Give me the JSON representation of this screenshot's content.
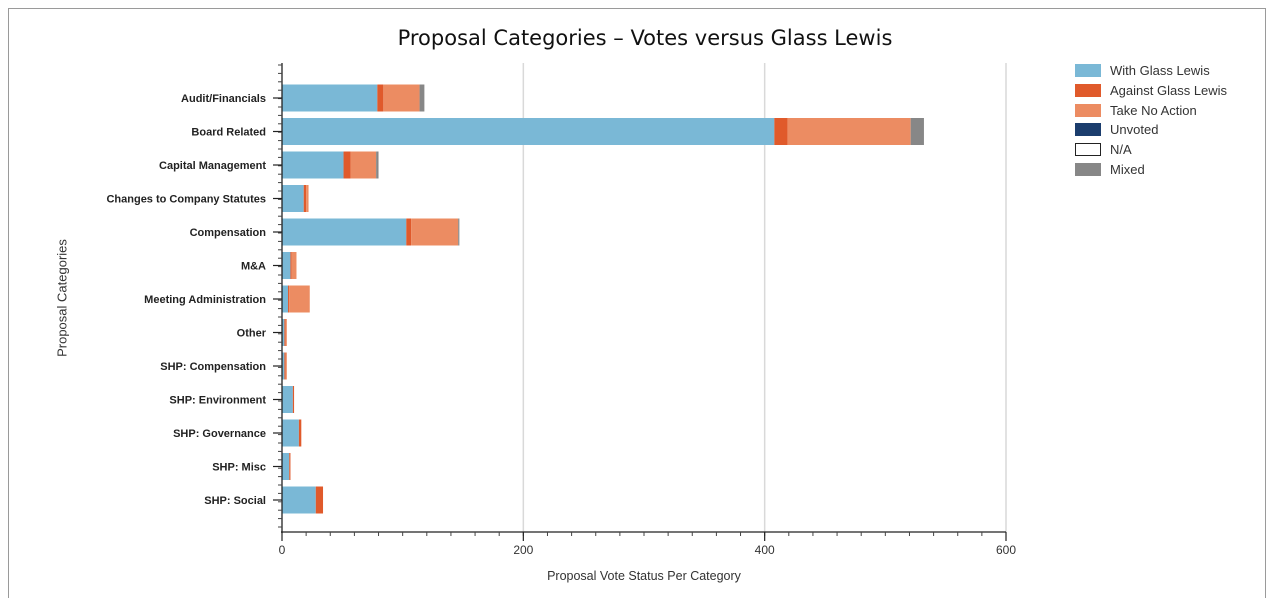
{
  "chart_data": {
    "type": "bar",
    "orientation": "horizontal",
    "stacked": true,
    "title": "Proposal Categories – Votes versus Glass Lewis",
    "xlabel": "Proposal Vote Status Per Category",
    "ylabel": "Proposal Categories",
    "xlim": [
      0,
      600
    ],
    "xticks": [
      "0",
      "200",
      "400",
      "600"
    ],
    "grid": "vertical",
    "legend_position": "right",
    "categories": [
      "Audit/Financials",
      "Board Related",
      "Capital Management",
      "Changes to Company Statutes",
      "Compensation",
      "M&A",
      "Meeting Administration",
      "Other",
      "SHP: Compensation",
      "SHP: Environment",
      "SHP: Governance",
      "SHP: Misc",
      "SHP: Social"
    ],
    "series": [
      {
        "name": "With Glass Lewis",
        "color": "#7ab8d6",
        "values": [
          79,
          408,
          51,
          18,
          103,
          7,
          5,
          2,
          2,
          9,
          14,
          6,
          28
        ]
      },
      {
        "name": "Against Glass Lewis",
        "color": "#e05a2b",
        "values": [
          5,
          11,
          6,
          2,
          4,
          1,
          1,
          1,
          1,
          1,
          2,
          1,
          6
        ]
      },
      {
        "name": "Take No Action",
        "color": "#ec8c62",
        "values": [
          30,
          102,
          21,
          2,
          39,
          4,
          17,
          1,
          1,
          0,
          0,
          0,
          0
        ]
      },
      {
        "name": "Unvoted",
        "color": "#1b3d6d",
        "values": [
          0,
          0,
          0,
          0,
          0,
          0,
          0,
          0,
          0,
          0,
          0,
          0,
          0
        ]
      },
      {
        "name": "N/A",
        "color": "#ffffff",
        "values": [
          0,
          0,
          0,
          0,
          0,
          0,
          0,
          0,
          0,
          0,
          0,
          0,
          0
        ]
      },
      {
        "name": "Mixed",
        "color": "#878787",
        "values": [
          4,
          11,
          2,
          0,
          1,
          0,
          0,
          0,
          0,
          0,
          0,
          0,
          0
        ]
      }
    ]
  }
}
